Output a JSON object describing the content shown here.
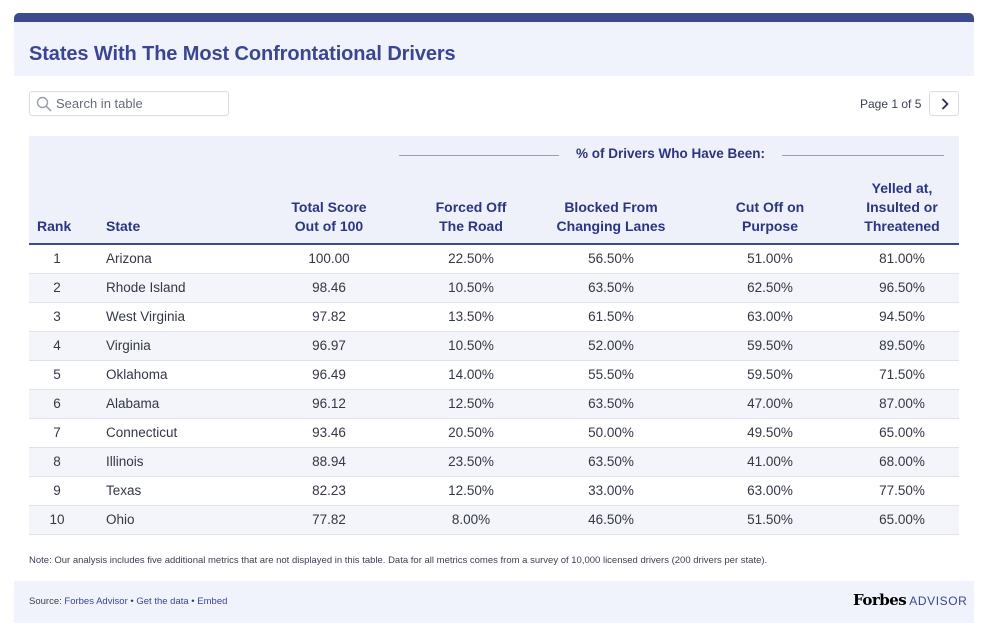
{
  "title": "States With The Most Confrontational Drivers",
  "colors": {
    "accent": "#3c4a8f",
    "title": "#3a4694",
    "header_bg": "#f0f3fb",
    "row_alt": "#f3f5fa"
  },
  "search": {
    "placeholder": "Search in table",
    "value": "",
    "icon": "search-icon"
  },
  "pager": {
    "text": "Page 1 of 5",
    "next_icon": "chevron-right-icon"
  },
  "group_header": "% of Drivers Who Have Been:",
  "columns": [
    {
      "key": "rank",
      "lines": [
        "Rank"
      ]
    },
    {
      "key": "state",
      "lines": [
        "State"
      ]
    },
    {
      "key": "score",
      "lines": [
        "Total Score",
        "Out of 100"
      ]
    },
    {
      "key": "forced",
      "lines": [
        "Forced Off",
        "The Road"
      ]
    },
    {
      "key": "blocked",
      "lines": [
        "Blocked From",
        "Changing Lanes"
      ]
    },
    {
      "key": "cut",
      "lines": [
        "Cut Off on",
        "Purpose"
      ]
    },
    {
      "key": "yelled",
      "lines": [
        "Yelled at,",
        "Insulted or",
        "Threatened"
      ]
    }
  ],
  "rows": [
    {
      "rank": "1",
      "state": "Arizona",
      "score": "100.00",
      "forced": "22.50%",
      "blocked": "56.50%",
      "cut": "51.00%",
      "yelled": "81.00%"
    },
    {
      "rank": "2",
      "state": "Rhode Island",
      "score": "98.46",
      "forced": "10.50%",
      "blocked": "63.50%",
      "cut": "62.50%",
      "yelled": "96.50%"
    },
    {
      "rank": "3",
      "state": "West Virginia",
      "score": "97.82",
      "forced": "13.50%",
      "blocked": "61.50%",
      "cut": "63.00%",
      "yelled": "94.50%"
    },
    {
      "rank": "4",
      "state": "Virginia",
      "score": "96.97",
      "forced": "10.50%",
      "blocked": "52.00%",
      "cut": "59.50%",
      "yelled": "89.50%"
    },
    {
      "rank": "5",
      "state": "Oklahoma",
      "score": "96.49",
      "forced": "14.00%",
      "blocked": "55.50%",
      "cut": "59.50%",
      "yelled": "71.50%"
    },
    {
      "rank": "6",
      "state": "Alabama",
      "score": "96.12",
      "forced": "12.50%",
      "blocked": "63.50%",
      "cut": "47.00%",
      "yelled": "87.00%"
    },
    {
      "rank": "7",
      "state": "Connecticut",
      "score": "93.46",
      "forced": "20.50%",
      "blocked": "50.00%",
      "cut": "49.50%",
      "yelled": "65.00%"
    },
    {
      "rank": "8",
      "state": "Illinois",
      "score": "88.94",
      "forced": "23.50%",
      "blocked": "63.50%",
      "cut": "41.00%",
      "yelled": "68.00%"
    },
    {
      "rank": "9",
      "state": "Texas",
      "score": "82.23",
      "forced": "12.50%",
      "blocked": "33.00%",
      "cut": "63.00%",
      "yelled": "77.50%"
    },
    {
      "rank": "10",
      "state": "Ohio",
      "score": "77.82",
      "forced": "8.00%",
      "blocked": "46.50%",
      "cut": "51.50%",
      "yelled": "65.00%"
    }
  ],
  "note": "Note: Our analysis includes five additional metrics that are not displayed in this table. Data for all metrics comes from a survey of 10,000 licensed drivers (200 drivers per state).",
  "footer": {
    "source_prefix": "Source: ",
    "source_link": "Forbes Advisor",
    "sep1": " • ",
    "get_data": "Get the data",
    "sep2": " • ",
    "embed": "Embed",
    "brand_forbes": "Forbes",
    "brand_advisor": "ADVISOR"
  }
}
